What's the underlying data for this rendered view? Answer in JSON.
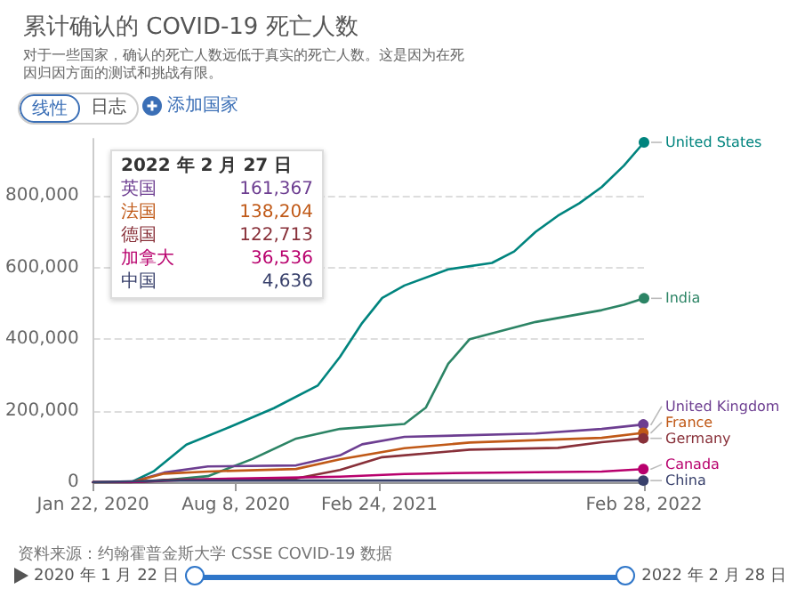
{
  "chart_data": {
    "type": "line",
    "title": "累计确认的 COVID-19 死亡人数",
    "subtitle": "对于一些国家，确认的死亡人数远低于真实的死亡人数。这是因为在死因归因方面的测试和挑战有限。",
    "xlim": [
      "2020-01-22",
      "2022-02-28"
    ],
    "xticks": [
      {
        "value": "2020-01-22",
        "label": "Jan 22, 2020"
      },
      {
        "value": "2020-08-08",
        "label": "Aug 8, 2020"
      },
      {
        "value": "2021-02-24",
        "label": "Feb 24, 2021"
      },
      {
        "value": "2022-02-28",
        "label": "Feb 28, 2022"
      }
    ],
    "ylim": [
      0,
      960000
    ],
    "yticks": [
      0,
      {
        "value": 200000,
        "label": "200,000"
      },
      {
        "value": 400000,
        "label": "400,000"
      },
      {
        "value": 600000,
        "label": "600,000"
      },
      {
        "value": 800000,
        "label": "800,000"
      }
    ],
    "grid": "y",
    "legend": false,
    "line_style": "solid",
    "series": [
      {
        "name": "United States",
        "color": "#00847e",
        "x": [
          "2020-01-22",
          "2020-03-15",
          "2020-04-15",
          "2020-05-31",
          "2020-07-31",
          "2020-09-30",
          "2020-11-30",
          "2020-12-31",
          "2021-01-31",
          "2021-02-28",
          "2021-03-31",
          "2021-05-31",
          "2021-07-31",
          "2021-08-31",
          "2021-09-30",
          "2021-10-31",
          "2021-11-30",
          "2021-12-31",
          "2022-01-31",
          "2022-02-28"
        ],
        "values": [
          0,
          0,
          30000,
          105000,
          155000,
          207000,
          270000,
          350000,
          445000,
          515000,
          550000,
          595000,
          613000,
          645000,
          700000,
          745000,
          780000,
          825000,
          885000,
          950000
        ]
      },
      {
        "name": "India",
        "color": "#2c8465",
        "x": [
          "2020-01-22",
          "2020-03-31",
          "2020-06-30",
          "2020-08-31",
          "2020-10-31",
          "2020-12-31",
          "2021-03-31",
          "2021-04-30",
          "2021-05-31",
          "2021-06-30",
          "2021-09-30",
          "2021-12-31",
          "2022-01-31",
          "2022-02-28"
        ],
        "values": [
          0,
          0,
          17000,
          65000,
          122000,
          149000,
          163000,
          209000,
          331000,
          400000,
          448000,
          481000,
          496000,
          514000
        ]
      },
      {
        "name": "United Kingdom",
        "color": "#6d3e91",
        "x": [
          "2020-01-22",
          "2020-03-15",
          "2020-04-30",
          "2020-06-30",
          "2020-10-31",
          "2020-12-31",
          "2021-01-31",
          "2021-03-31",
          "2021-09-30",
          "2021-12-31",
          "2022-02-27"
        ],
        "values": [
          0,
          0,
          27000,
          44000,
          47000,
          75000,
          106000,
          127000,
          136000,
          149000,
          161367
        ]
      },
      {
        "name": "France",
        "color": "#c05917",
        "x": [
          "2020-01-22",
          "2020-03-15",
          "2020-04-30",
          "2020-06-30",
          "2020-10-31",
          "2020-12-31",
          "2021-03-31",
          "2021-06-30",
          "2021-12-31",
          "2022-02-27"
        ],
        "values": [
          0,
          0,
          24000,
          30000,
          37000,
          64000,
          95000,
          111000,
          124000,
          138204
        ]
      },
      {
        "name": "Germany",
        "color": "#883039",
        "x": [
          "2020-01-22",
          "2020-03-15",
          "2020-04-30",
          "2020-10-31",
          "2020-12-31",
          "2021-02-28",
          "2021-06-30",
          "2021-10-31",
          "2021-12-31",
          "2022-02-27"
        ],
        "values": [
          0,
          0,
          6600,
          10500,
          34000,
          70000,
          91000,
          96000,
          112000,
          122713
        ]
      },
      {
        "name": "Canada",
        "color": "#b8006d",
        "x": [
          "2020-01-22",
          "2020-03-15",
          "2020-06-30",
          "2020-12-31",
          "2021-03-31",
          "2021-06-30",
          "2021-12-31",
          "2022-02-27"
        ],
        "values": [
          0,
          0,
          8600,
          15600,
          23000,
          26300,
          30000,
          36536
        ]
      },
      {
        "name": "China",
        "color": "#38406b",
        "x": [
          "2020-01-22",
          "2020-04-30",
          "2022-02-27"
        ],
        "values": [
          0,
          4600,
          4636
        ]
      }
    ],
    "annotations": [
      "线性",
      "日志",
      "添加国家",
      "资料来源：约翰霍普金斯大学 CSSE COVID-19 数据",
      "2020 年 1 月 22 日",
      "2022 年 2 月 28 日",
      "2022 年 2 月 27 日",
      "英国 161,367",
      "法国 138,204",
      "德国 122,713",
      "加拿大 36,536",
      "中国 4,636"
    ]
  }
}
